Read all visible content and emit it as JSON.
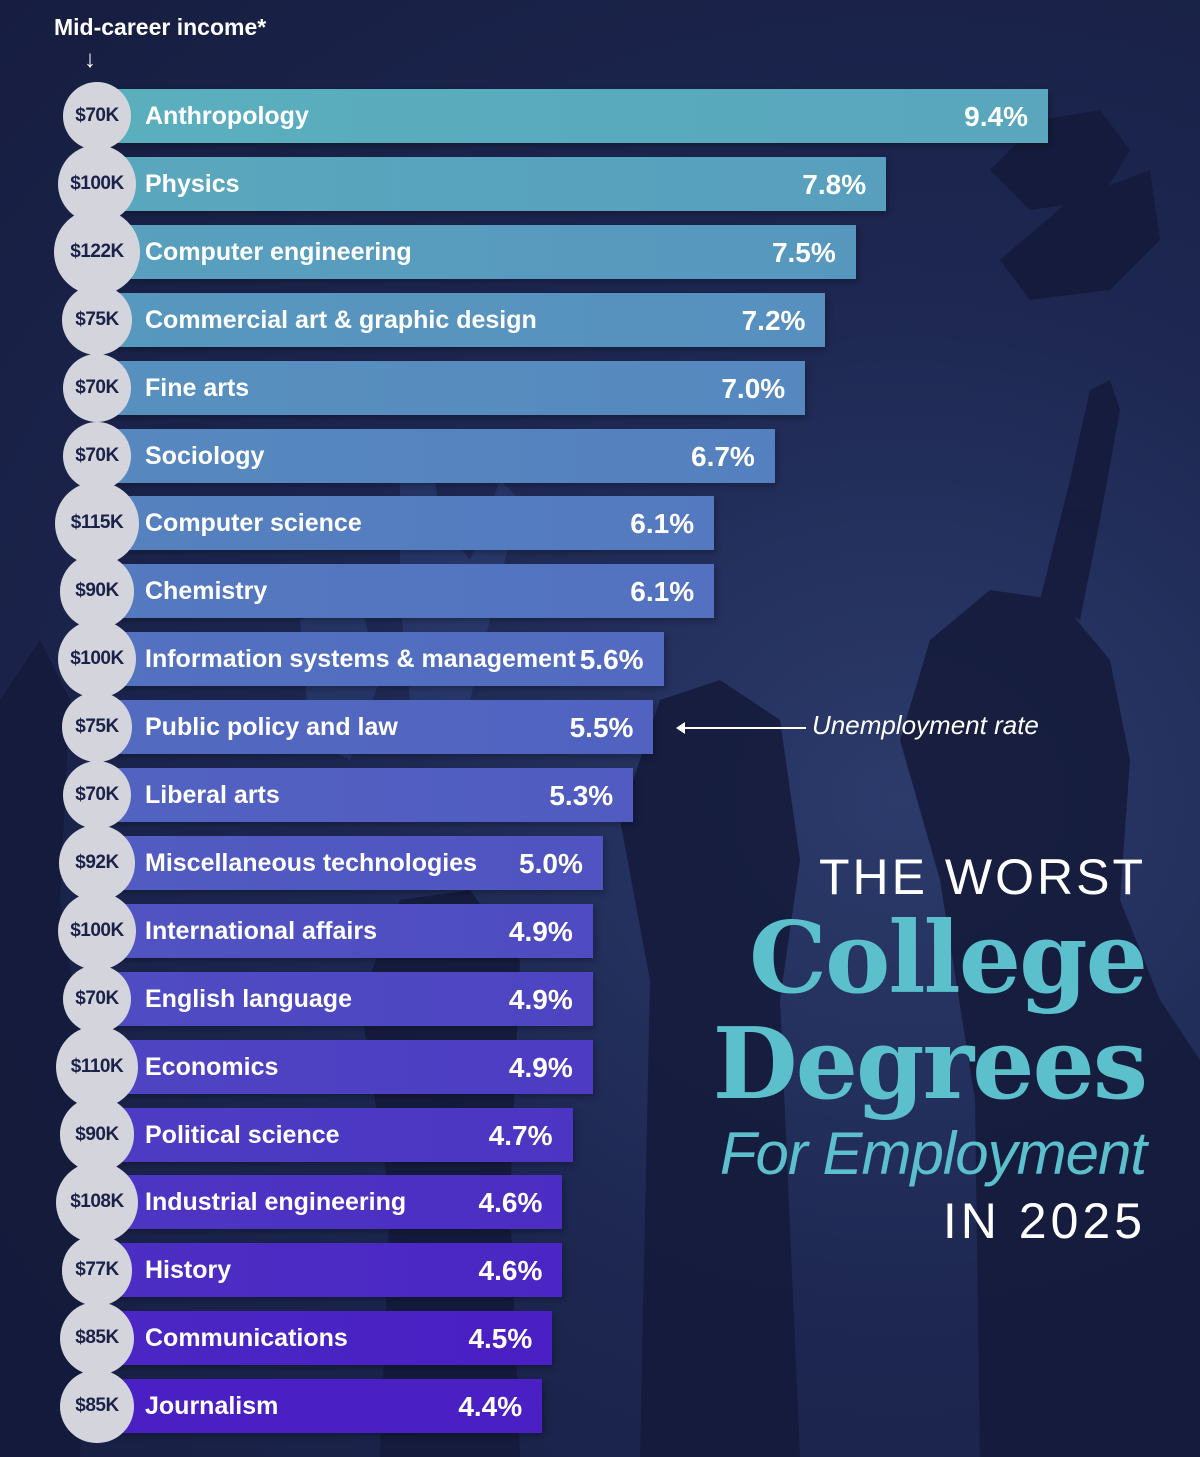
{
  "header": {
    "axis_label": "Mid-career income*",
    "axis_arrow": "↓"
  },
  "annotation": {
    "text": "Unemployment rate"
  },
  "title": {
    "line1": "THE WORST",
    "line2": "College",
    "line3": "Degrees",
    "line4": "For Employment",
    "line5": "IN 2025"
  },
  "colors": {
    "bar_top": "#5aafbd",
    "bar_bottom": "#4a1fc4",
    "circle": "#d4d5dc",
    "title_accent": "#5bbfcc",
    "background": "#1d2751"
  },
  "chart_data": {
    "type": "bar",
    "orientation": "horizontal",
    "categories": [
      "Anthropology",
      "Physics",
      "Computer engineering",
      "Commercial art & graphic design",
      "Fine arts",
      "Sociology",
      "Computer science",
      "Chemistry",
      "Information systems & management",
      "Public policy and law",
      "Liberal arts",
      "Miscellaneous technologies",
      "International affairs",
      "English language",
      "Economics",
      "Political science",
      "Industrial engineering",
      "History",
      "Communications",
      "Journalism"
    ],
    "series": [
      {
        "name": "Unemployment rate",
        "unit": "%",
        "values": [
          9.4,
          7.8,
          7.5,
          7.2,
          7.0,
          6.7,
          6.1,
          6.1,
          5.6,
          5.5,
          5.3,
          5.0,
          4.9,
          4.9,
          4.9,
          4.7,
          4.6,
          4.6,
          4.5,
          4.4
        ],
        "labels": [
          "9.4%",
          "7.8%",
          "7.5%",
          "7.2%",
          "7.0%",
          "6.7%",
          "6.1%",
          "6.1%",
          "5.6%",
          "5.5%",
          "5.3%",
          "5.0%",
          "4.9%",
          "4.9%",
          "4.9%",
          "4.7%",
          "4.6%",
          "4.6%",
          "4.5%",
          "4.4%"
        ]
      },
      {
        "name": "Mid-career income*",
        "unit": "USD",
        "values": [
          70000,
          100000,
          122000,
          75000,
          70000,
          70000,
          115000,
          90000,
          100000,
          75000,
          70000,
          92000,
          100000,
          70000,
          110000,
          90000,
          108000,
          77000,
          85000,
          85000
        ],
        "labels": [
          "$70K",
          "$100K",
          "$122K",
          "$75K",
          "$70K",
          "$70K",
          "$115K",
          "$90K",
          "$100K",
          "$75K",
          "$70K",
          "$92K",
          "$100K",
          "$70K",
          "$110K",
          "$90K",
          "$108K",
          "$77K",
          "$85K",
          "$85K"
        ]
      }
    ],
    "title": "THE WORST College Degrees For Employment IN 2025",
    "xlabel": "",
    "ylabel": "",
    "grid": false,
    "legend": "none"
  }
}
